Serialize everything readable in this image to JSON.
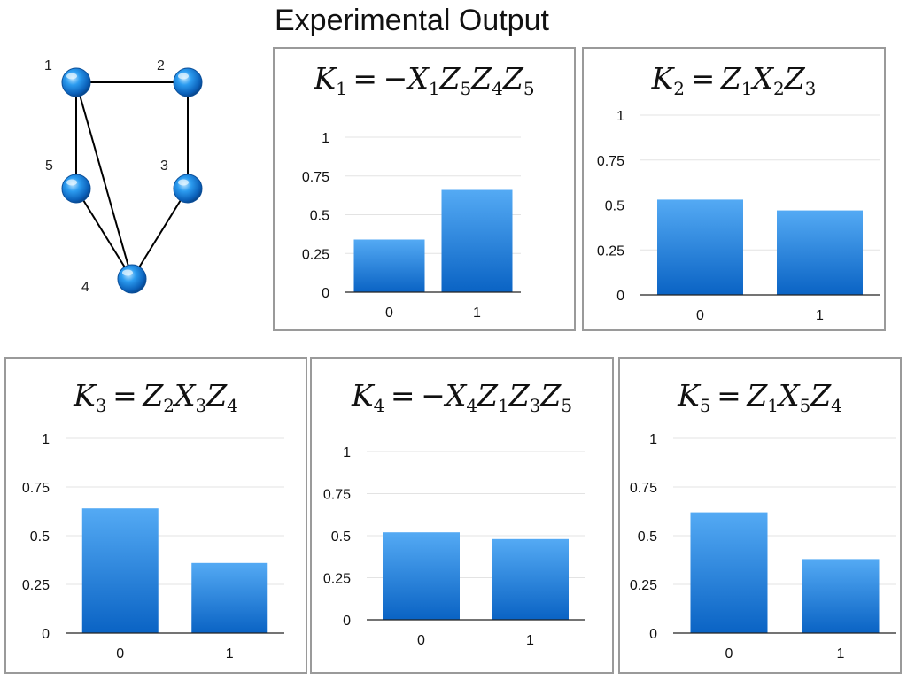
{
  "figure_title": "Experimental Output",
  "graph": {
    "nodes": [
      {
        "id": "1",
        "label": "1"
      },
      {
        "id": "2",
        "label": "2"
      },
      {
        "id": "3",
        "label": "3"
      },
      {
        "id": "4",
        "label": "4"
      },
      {
        "id": "5",
        "label": "5"
      }
    ],
    "edges": [
      [
        "1",
        "2"
      ],
      [
        "2",
        "3"
      ],
      [
        "1",
        "5"
      ],
      [
        "1",
        "4"
      ],
      [
        "5",
        "4"
      ],
      [
        "3",
        "4"
      ]
    ],
    "node_color": "#1e8fe0"
  },
  "bar_color_top": "#54aaf4",
  "bar_color_bottom": "#0a63c4",
  "chart_data": [
    {
      "type": "bar",
      "title": "K1 = −X1 Z5 Z4 Z5",
      "title_parts": [
        {
          "sym": "K",
          "sub": "1"
        },
        {
          "op": " = −"
        },
        {
          "sym": "X",
          "sub": "1"
        },
        {
          "sym": "Z",
          "sub": "5"
        },
        {
          "sym": "Z",
          "sub": "4"
        },
        {
          "sym": "Z",
          "sub": "5"
        }
      ],
      "categories": [
        "0",
        "1"
      ],
      "values": [
        0.34,
        0.66
      ],
      "ylim": [
        0,
        1
      ],
      "yticks": [
        "0",
        "0.25",
        "0.5",
        "0.75",
        "1"
      ],
      "grid": true
    },
    {
      "type": "bar",
      "title": "K2 = Z1 X2 Z3",
      "title_parts": [
        {
          "sym": "K",
          "sub": "2"
        },
        {
          "op": " = "
        },
        {
          "sym": "Z",
          "sub": "1"
        },
        {
          "sym": "X",
          "sub": "2"
        },
        {
          "sym": "Z",
          "sub": "3"
        }
      ],
      "categories": [
        "0",
        "1"
      ],
      "values": [
        0.53,
        0.47
      ],
      "ylim": [
        0,
        1
      ],
      "yticks": [
        "0",
        "0.25",
        "0.5",
        "0.75",
        "1"
      ],
      "grid": true
    },
    {
      "type": "bar",
      "title": "K3 = Z2 X3 Z4",
      "title_parts": [
        {
          "sym": "K",
          "sub": "3"
        },
        {
          "op": " = "
        },
        {
          "sym": "Z",
          "sub": "2"
        },
        {
          "sym": "X",
          "sub": "3"
        },
        {
          "sym": "Z",
          "sub": "4"
        }
      ],
      "categories": [
        "0",
        "1"
      ],
      "values": [
        0.64,
        0.36
      ],
      "ylim": [
        0,
        1
      ],
      "yticks": [
        "0",
        "0.25",
        "0.5",
        "0.75",
        "1"
      ],
      "grid": true
    },
    {
      "type": "bar",
      "title": "K4 = −X4 Z1 Z3 Z5",
      "title_parts": [
        {
          "sym": "K",
          "sub": "4"
        },
        {
          "op": " = −"
        },
        {
          "sym": "X",
          "sub": "4"
        },
        {
          "sym": "Z",
          "sub": "1"
        },
        {
          "sym": "Z",
          "sub": "3"
        },
        {
          "sym": "Z",
          "sub": "5"
        }
      ],
      "categories": [
        "0",
        "1"
      ],
      "values": [
        0.52,
        0.48
      ],
      "ylim": [
        0,
        1
      ],
      "yticks": [
        "0",
        "0.25",
        "0.5",
        "0.75",
        "1"
      ],
      "grid": true
    },
    {
      "type": "bar",
      "title": "K5 = Z1 X5 Z4",
      "title_parts": [
        {
          "sym": "K",
          "sub": "5"
        },
        {
          "op": " = "
        },
        {
          "sym": "Z",
          "sub": "1"
        },
        {
          "sym": "X",
          "sub": "5"
        },
        {
          "sym": "Z",
          "sub": "4"
        }
      ],
      "categories": [
        "0",
        "1"
      ],
      "values": [
        0.62,
        0.38
      ],
      "ylim": [
        0,
        1
      ],
      "yticks": [
        "0",
        "0.25",
        "0.5",
        "0.75",
        "1"
      ],
      "grid": true
    }
  ]
}
